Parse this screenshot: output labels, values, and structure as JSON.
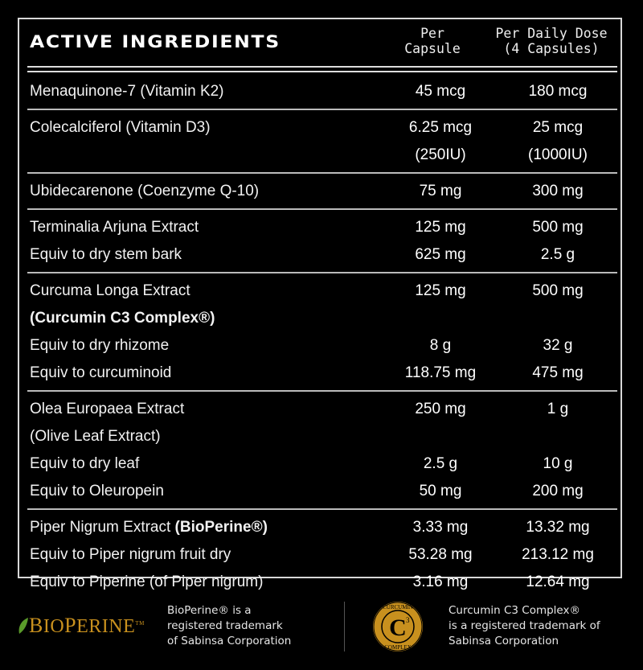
{
  "header": {
    "title": "ACTIVE INGREDIENTS",
    "col1": [
      "Per",
      "Capsule"
    ],
    "col2": [
      "Per Daily Dose",
      "(4 Capsules)"
    ]
  },
  "groups": [
    {
      "lines": [
        {
          "name": "Menaquinone-7 (Vitamin K2)",
          "bold": "",
          "per_capsule": "45 mcg",
          "daily": "180 mcg"
        }
      ]
    },
    {
      "lines": [
        {
          "name": "Colecalciferol (Vitamin D3)",
          "bold": "",
          "per_capsule": "6.25 mcg",
          "daily": "25 mcg"
        },
        {
          "name": "",
          "bold": "",
          "per_capsule": "(250IU)",
          "daily": "(1000IU)"
        }
      ]
    },
    {
      "lines": [
        {
          "name": "Ubidecarenone (Coenzyme Q-10)",
          "bold": "",
          "per_capsule": "75 mg",
          "daily": "300 mg"
        }
      ]
    },
    {
      "lines": [
        {
          "name": "Terminalia Arjuna Extract",
          "bold": "",
          "per_capsule": "125 mg",
          "daily": "500 mg"
        },
        {
          "name": "Equiv to dry stem bark",
          "bold": "",
          "per_capsule": "625 mg",
          "daily": "2.5 g"
        }
      ]
    },
    {
      "lines": [
        {
          "name": "Curcuma Longa Extract",
          "bold": "",
          "per_capsule": "125 mg",
          "daily": "500 mg"
        },
        {
          "name": "",
          "bold": "(Curcumin C3 Complex®)",
          "per_capsule": "",
          "daily": ""
        },
        {
          "name": "Equiv to dry rhizome",
          "bold": "",
          "per_capsule": "8 g",
          "daily": "32 g"
        },
        {
          "name": "Equiv to curcuminoid",
          "bold": "",
          "per_capsule": "118.75 mg",
          "daily": "475 mg"
        }
      ]
    },
    {
      "lines": [
        {
          "name": "Olea Europaea Extract",
          "bold": "",
          "per_capsule": "250 mg",
          "daily": "1 g"
        },
        {
          "name": "(Olive Leaf Extract)",
          "bold": "",
          "per_capsule": "",
          "daily": ""
        },
        {
          "name": "Equiv to dry leaf",
          "bold": "",
          "per_capsule": "2.5 g",
          "daily": "10 g"
        },
        {
          "name": "Equiv to Oleuropein",
          "bold": "",
          "per_capsule": "50 mg",
          "daily": "200 mg"
        }
      ]
    },
    {
      "lines": [
        {
          "name": "Piper Nigrum Extract ",
          "bold": "(BioPerine®)",
          "per_capsule": "3.33 mg",
          "daily": "13.32 mg"
        },
        {
          "name": "Equiv to Piper nigrum fruit dry",
          "bold": "",
          "per_capsule": "53.28 mg",
          "daily": "213.12 mg"
        },
        {
          "name": "Equiv to Piperine (of Piper nigrum)",
          "bold": "",
          "per_capsule": "3.16 mg",
          "daily": "12.64 mg"
        }
      ]
    }
  ],
  "footer": {
    "bioperine_logo": "BioPerine™",
    "bioperine_note": [
      "BioPerine® is a",
      "registered trademark",
      "of Sabinsa Corporation"
    ],
    "c3_logo": "Curcumin C3 Complex",
    "c3_note": [
      "Curcumin C3 Complex®",
      "is a registered trademark of",
      "Sabinsa Corporation"
    ],
    "colors": {
      "logo_gold": "#c8901e",
      "leaf_green": "#5a9a2a"
    }
  }
}
